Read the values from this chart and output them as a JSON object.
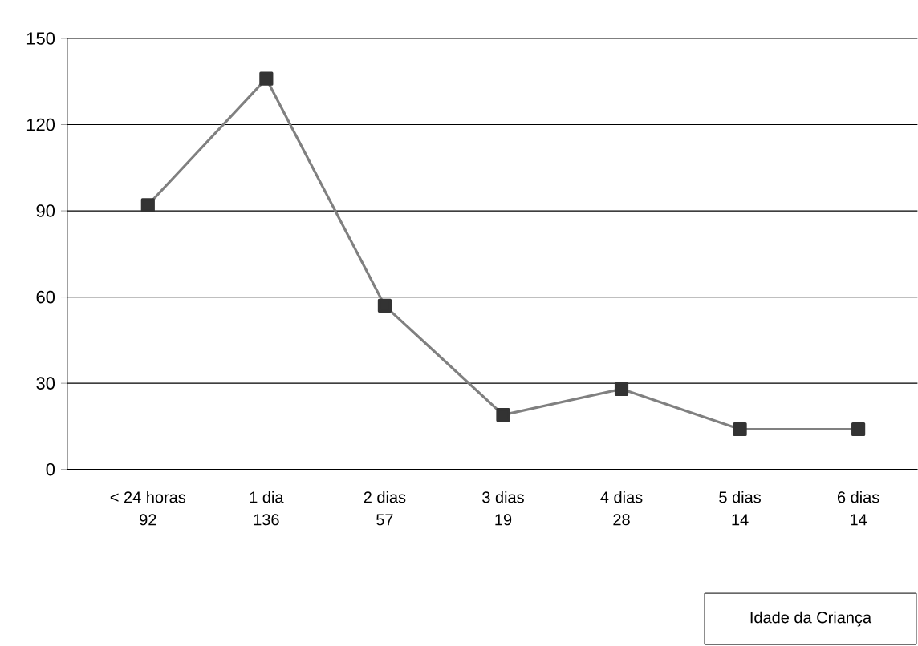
{
  "chart_data": {
    "type": "line",
    "annotations": [
      "Idade da Criança"
    ],
    "categories": [
      "< 24 horas",
      "1 dia",
      "2 dias",
      "3 dias",
      "4 dias",
      "5 dias",
      "6 dias"
    ],
    "values": [
      92,
      136,
      57,
      19,
      28,
      14,
      14
    ],
    "color": "#808080",
    "marker": "square",
    "line_style": "solid",
    "data_labels": true,
    "ylim": [
      0,
      150
    ],
    "yticks": [
      0,
      30,
      60,
      90,
      120,
      150
    ],
    "grid": "y"
  }
}
